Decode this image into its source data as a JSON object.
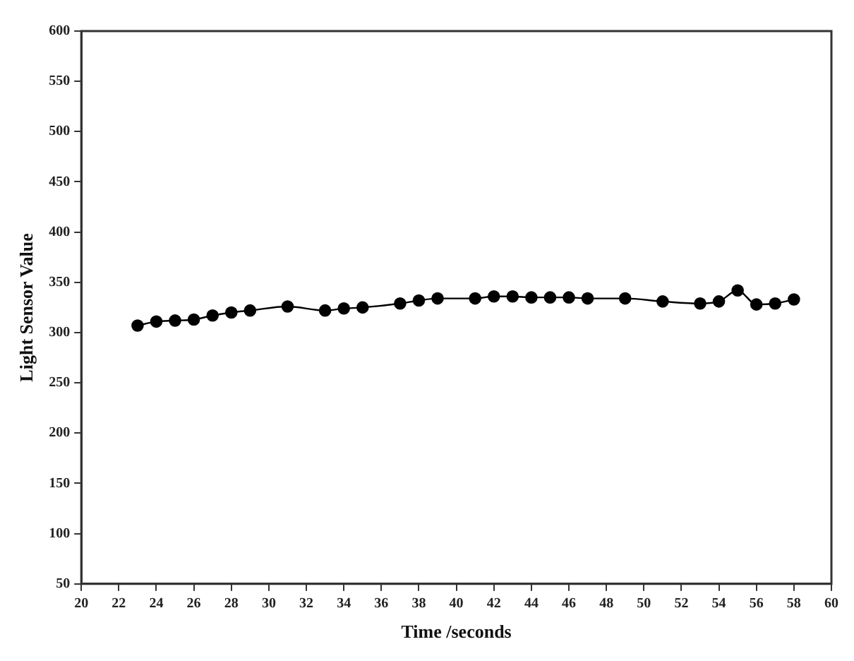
{
  "chart_data": {
    "type": "line",
    "xlabel": "Time /seconds",
    "ylabel": "Light Sensor Value",
    "x": [
      23,
      24,
      25,
      26,
      27,
      28,
      29,
      31,
      33,
      34,
      35,
      37,
      38,
      39,
      41,
      42,
      43,
      44,
      45,
      46,
      47,
      49,
      51,
      53,
      54,
      55,
      56,
      57,
      58
    ],
    "series": [
      {
        "color": "#000000",
        "values": [
          307,
          311,
          312,
          313,
          317,
          320,
          322,
          326,
          322,
          324,
          325,
          329,
          332,
          334,
          334,
          336,
          336,
          335,
          335,
          335,
          334,
          334,
          331,
          329,
          331,
          342,
          328,
          329,
          333
        ]
      }
    ],
    "xlim": [
      20,
      60
    ],
    "xticks": [
      20,
      22,
      24,
      26,
      28,
      30,
      32,
      34,
      36,
      38,
      40,
      42,
      44,
      46,
      48,
      50,
      52,
      54,
      56,
      58,
      60
    ],
    "ylim": [
      50,
      600
    ],
    "yticks": [
      50,
      100,
      150,
      200,
      250,
      300,
      350,
      400,
      450,
      500,
      550,
      600
    ],
    "grid": false,
    "legend": false,
    "marker": "circle",
    "line_style": "solid"
  }
}
